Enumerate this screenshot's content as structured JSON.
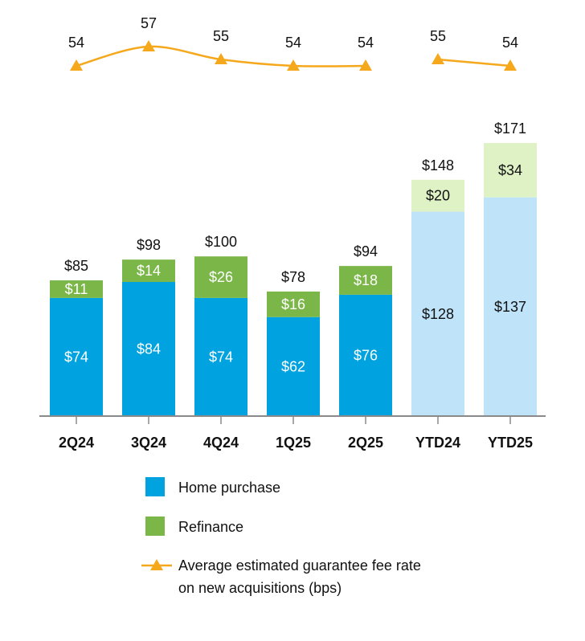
{
  "chart_data": {
    "type": "bar",
    "stacked": true,
    "categories": [
      "2Q24",
      "3Q24",
      "4Q24",
      "1Q25",
      "2Q25",
      "YTD24",
      "YTD25"
    ],
    "series": [
      {
        "name": "Home purchase",
        "values": [
          74,
          84,
          74,
          62,
          76,
          128,
          137
        ],
        "labels": [
          "$74",
          "$84",
          "$74",
          "$62",
          "$76",
          "$128",
          "$137"
        ],
        "color": "#00A3E0",
        "ytd_color": "#BFE3F9"
      },
      {
        "name": "Refinance",
        "values": [
          11,
          14,
          26,
          16,
          18,
          20,
          34
        ],
        "labels": [
          "$11",
          "$14",
          "$26",
          "$16",
          "$18",
          "$20",
          "$34"
        ],
        "color": "#7AB648",
        "ytd_color": "#DFF2C6"
      }
    ],
    "totals": [
      85,
      98,
      100,
      78,
      94,
      148,
      171
    ],
    "total_labels": [
      "$85",
      "$98",
      "$100",
      "$78",
      "$94",
      "$148",
      "$171"
    ],
    "ytd_categories": [
      "YTD24",
      "YTD25"
    ],
    "ylim": [
      0,
      180
    ],
    "line_series": {
      "name": "Average estimated guarantee fee rate on new acquisitions (bps)",
      "values": [
        54,
        57,
        55,
        54,
        54,
        55,
        54
      ],
      "segments": [
        [
          0,
          4
        ],
        [
          5,
          6
        ]
      ],
      "ylim": [
        53,
        58
      ],
      "color": "#F5A81C"
    },
    "legend": [
      {
        "label": "Home purchase",
        "marker": "square",
        "color": "#00A3E0"
      },
      {
        "label": "Refinance",
        "marker": "square",
        "color": "#7AB648"
      },
      {
        "label": "Average estimated guarantee fee rate",
        "label2": "on new acquisitions (bps)",
        "marker": "line-triangle",
        "color": "#F5A81C"
      }
    ],
    "title": "",
    "xlabel": "",
    "ylabel": "",
    "grid": false
  }
}
